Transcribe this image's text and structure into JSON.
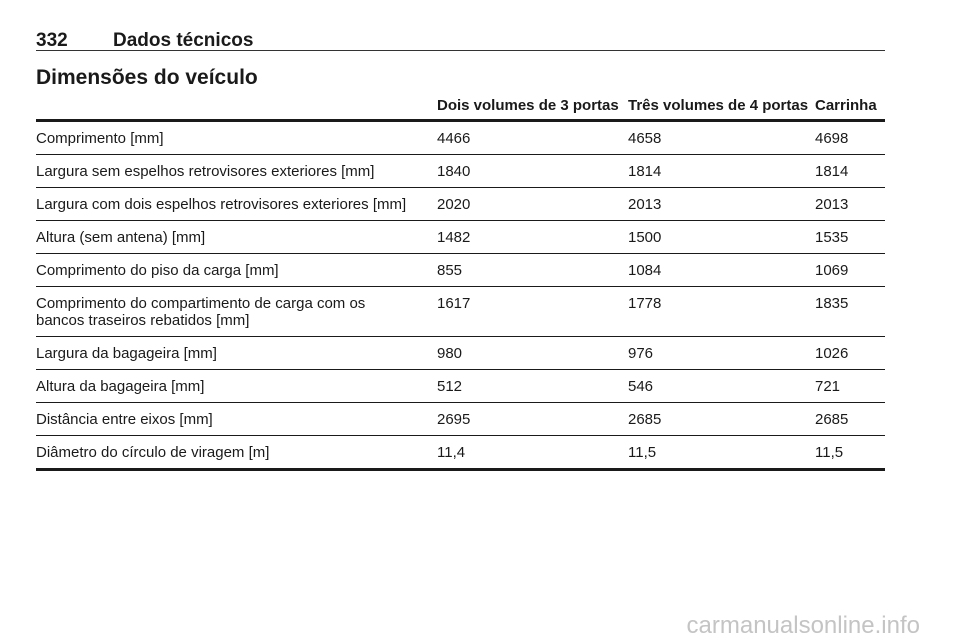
{
  "header": {
    "page_number": "332",
    "title": "Dados técnicos"
  },
  "section_title": "Dimensões do veículo",
  "table": {
    "columns": [
      "",
      "Dois volumes de 3 portas",
      "Três volumes de 4 portas",
      "Carrinha"
    ],
    "rows": [
      [
        "Comprimento [mm]",
        "4466",
        "4658",
        "4698"
      ],
      [
        "Largura sem espelhos retrovisores exteriores [mm]",
        "1840",
        "1814",
        "1814"
      ],
      [
        "Largura com dois espelhos retrovisores exteriores [mm]",
        "2020",
        "2013",
        "2013"
      ],
      [
        "Altura (sem antena) [mm]",
        "1482",
        "1500",
        "1535"
      ],
      [
        "Comprimento do piso da carga [mm]",
        "855",
        "1084",
        "1069"
      ],
      [
        "Comprimento do compartimento de carga com os\nbancos traseiros rebatidos [mm]",
        "1617",
        "1778",
        "1835"
      ],
      [
        "Largura da bagageira [mm]",
        "980",
        "976",
        "1026"
      ],
      [
        "Altura da bagageira [mm]",
        "512",
        "546",
        "721"
      ],
      [
        "Distância entre eixos [mm]",
        "2695",
        "2685",
        "2685"
      ],
      [
        "Diâmetro do círculo de viragem [m]",
        "11,4",
        "11,5",
        "11,5"
      ]
    ]
  },
  "watermark": "carmanualsonline.info"
}
